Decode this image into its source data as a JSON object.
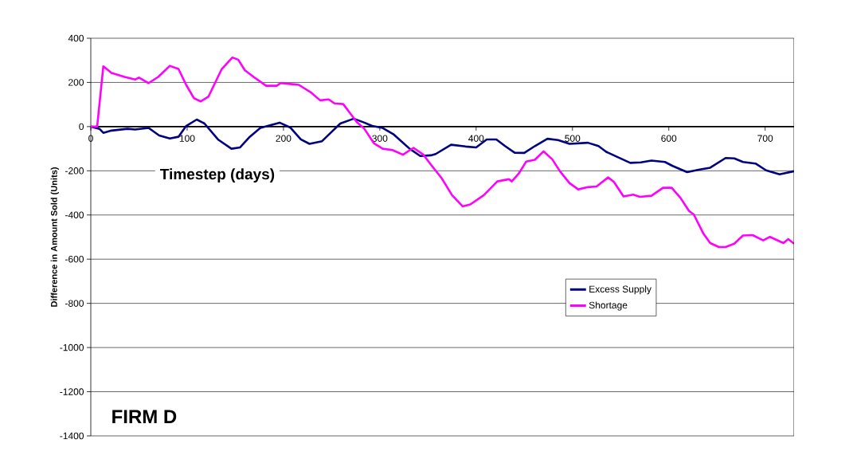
{
  "chart_data": {
    "type": "line",
    "xlabel": "Timestep (days)",
    "ylabel": "Difference in Amount Sold (Units)",
    "annotations": [
      "FIRM D"
    ],
    "xlim": [
      0,
      730
    ],
    "xticks": [
      0,
      100,
      200,
      300,
      400,
      500,
      600,
      700
    ],
    "ylim": [
      -1400,
      400
    ],
    "yticks": [
      -1400,
      -1200,
      -1000,
      -800,
      -600,
      -400,
      -200,
      0,
      200,
      400
    ],
    "grid": "y",
    "legend": "right",
    "marker": "none",
    "line_style": "solid",
    "series": [
      {
        "name": "Excess Supply",
        "color": "#000080",
        "x": [
          0,
          9,
          13,
          21.5,
          38,
          46,
          60,
          71,
          82,
          91,
          99,
          110,
          118,
          132,
          146,
          155,
          165,
          176,
          196,
          207,
          218,
          227,
          240,
          249,
          259,
          273,
          284,
          292,
          303,
          314,
          331,
          342,
          353,
          358,
          374,
          389,
          400,
          411,
          421,
          430,
          440,
          450,
          461,
          474,
          485,
          497,
          516,
          527,
          535,
          546,
          560,
          571,
          582,
          596,
          604,
          619,
          632,
          643,
          659,
          668,
          677,
          690,
          701,
          715,
          730
        ],
        "values": [
          0,
          -10,
          -28,
          -18,
          -10,
          -13,
          -6,
          -40,
          -54,
          -46,
          3,
          32,
          14,
          -58,
          -100,
          -94,
          -46,
          -6,
          18,
          -4,
          -58,
          -78,
          -66,
          -28,
          14,
          36,
          18,
          3,
          -6,
          -34,
          -100,
          -133,
          -130,
          -124,
          -82,
          -90,
          -94,
          -58,
          -58,
          -88,
          -118,
          -119,
          -88,
          -55,
          -61,
          -78,
          -73,
          -88,
          -114,
          -136,
          -164,
          -162,
          -154,
          -160,
          -178,
          -206,
          -194,
          -186,
          -142,
          -144,
          -160,
          -167,
          -198,
          -216,
          -202
        ]
      },
      {
        "name": "Shortage",
        "color": "#ff00ff",
        "x": [
          0,
          6.6,
          13,
          21.5,
          35,
          46,
          50,
          60,
          70,
          82,
          91,
          99,
          107,
          114,
          122,
          136,
          147,
          153,
          160,
          169,
          182,
          193,
          197,
          209,
          216,
          229,
          238,
          247,
          253,
          262,
          269,
          276,
          284,
          294,
          303,
          313,
          324,
          335,
          345,
          353,
          364,
          375,
          386,
          394,
          408,
          422,
          434,
          437,
          444,
          452,
          461,
          470,
          479,
          487,
          497,
          506,
          516,
          525,
          537,
          543,
          553,
          563,
          570,
          582,
          594,
          603,
          612,
          621,
          626,
          636,
          643,
          652,
          659,
          668,
          677,
          687,
          698,
          705,
          719,
          724,
          730
        ],
        "values": [
          0,
          0,
          273,
          243,
          225,
          213,
          222,
          197,
          225,
          275,
          261,
          189,
          129,
          114,
          135,
          261,
          313,
          303,
          255,
          225,
          185,
          185,
          197,
          192,
          189,
          153,
          119,
          123,
          105,
          102,
          62,
          21,
          -10,
          -76,
          -100,
          -106,
          -127,
          -96,
          -126,
          -172,
          -232,
          -310,
          -361,
          -352,
          -310,
          -248,
          -238,
          -248,
          -214,
          -158,
          -150,
          -112,
          -148,
          -202,
          -256,
          -284,
          -274,
          -271,
          -230,
          -250,
          -316,
          -308,
          -318,
          -313,
          -277,
          -277,
          -322,
          -382,
          -398,
          -485,
          -527,
          -545,
          -545,
          -530,
          -493,
          -491,
          -515,
          -499,
          -527,
          -509,
          -530
        ]
      }
    ]
  }
}
